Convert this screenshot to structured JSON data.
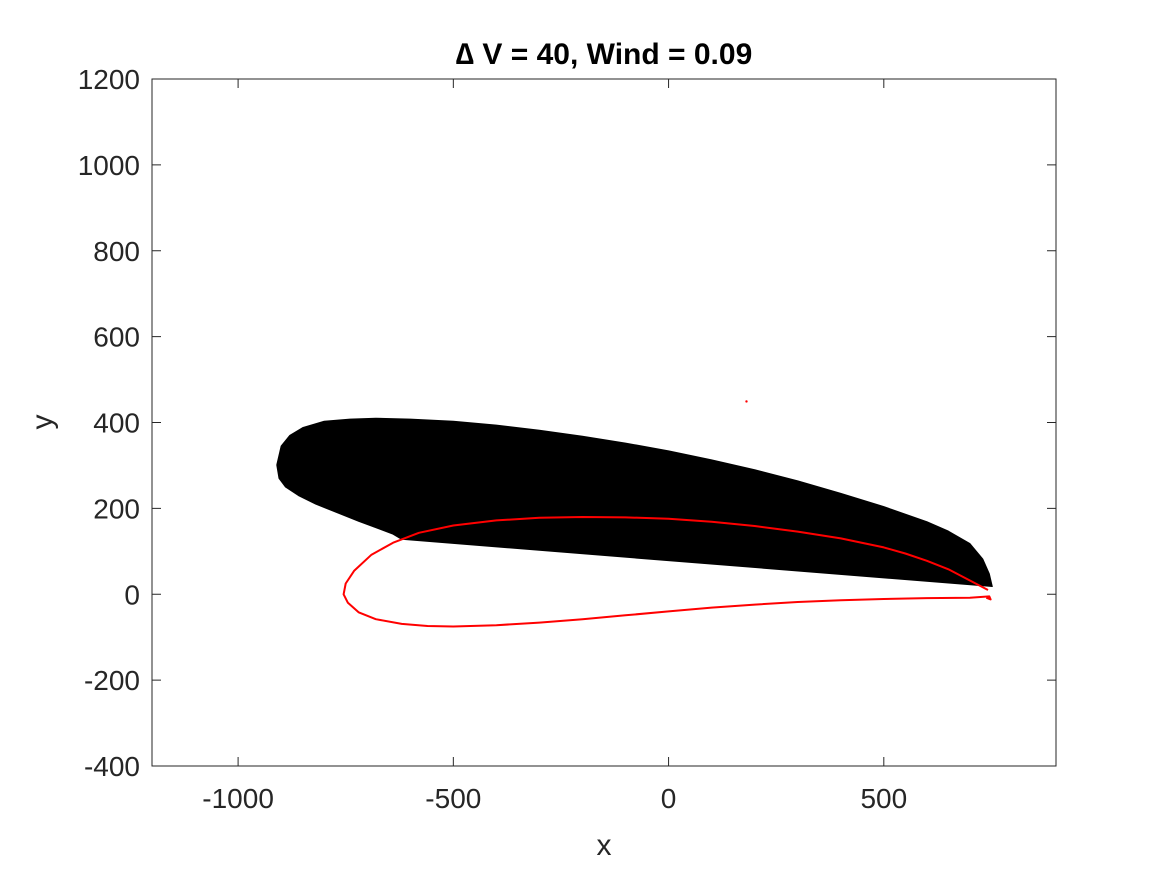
{
  "chart_data": {
    "type": "line",
    "title": "∆ V = 40, Wind = 0.09",
    "xlabel": "x",
    "ylabel": "y",
    "xlim": [
      -1200,
      900
    ],
    "ylim": [
      -400,
      1200
    ],
    "xticks": [
      -1000,
      -500,
      0,
      500
    ],
    "xtick_labels": [
      "-1000",
      "-500",
      "0",
      "500"
    ],
    "yticks": [
      -400,
      -200,
      0,
      200,
      400,
      600,
      800,
      1000,
      1200
    ],
    "ytick_labels": [
      "-400",
      "-200",
      "0",
      "200",
      "400",
      "600",
      "800",
      "1000",
      "1200"
    ],
    "grid": false,
    "box": true,
    "series": [
      {
        "style": "filled-band",
        "color": "#000000",
        "upper": {
          "x": [
            -910,
            -900,
            -880,
            -850,
            -800,
            -740,
            -680,
            -600,
            -500,
            -400,
            -300,
            -200,
            -100,
            0,
            100,
            200,
            300,
            400,
            500,
            600,
            650,
            700,
            730,
            745,
            752
          ],
          "y": [
            302,
            345,
            370,
            388,
            403,
            408,
            410,
            408,
            403,
            394,
            382,
            368,
            352,
            334,
            313,
            290,
            264,
            235,
            204,
            169,
            147,
            118,
            82,
            48,
            18
          ]
        },
        "lower": {
          "x": [
            -910,
            -905,
            -890,
            -860,
            -820,
            -770,
            -720,
            -680,
            -640,
            -620
          ],
          "y": [
            300,
            270,
            250,
            230,
            210,
            190,
            170,
            155,
            140,
            128
          ]
        }
      },
      {
        "style": "line",
        "color": "#ff0000",
        "x": [
          742,
          700,
          650,
          600,
          550,
          500,
          400,
          300,
          200,
          100,
          0,
          -100,
          -200,
          -300,
          -400,
          -500,
          -580,
          -640,
          -690,
          -730,
          -750,
          -755,
          -745,
          -720,
          -680,
          -620,
          -560,
          -500,
          -400,
          -300,
          -200,
          -100,
          0,
          100,
          200,
          300,
          400,
          500,
          600,
          700,
          745,
          748,
          738
        ],
        "y": [
          10,
          32,
          58,
          78,
          95,
          109,
          130,
          146,
          159,
          169,
          176,
          179,
          180,
          178,
          172,
          160,
          143,
          120,
          92,
          55,
          25,
          0,
          -20,
          -42,
          -58,
          -69,
          -74,
          -75,
          -72,
          -66,
          -58,
          -49,
          -40,
          -31,
          -24,
          -18,
          -14,
          -11,
          -9,
          -8,
          -5,
          -12,
          -8
        ]
      },
      {
        "style": "point",
        "color": "#ff0000",
        "x": [
          181
        ],
        "y": [
          449
        ]
      }
    ]
  }
}
